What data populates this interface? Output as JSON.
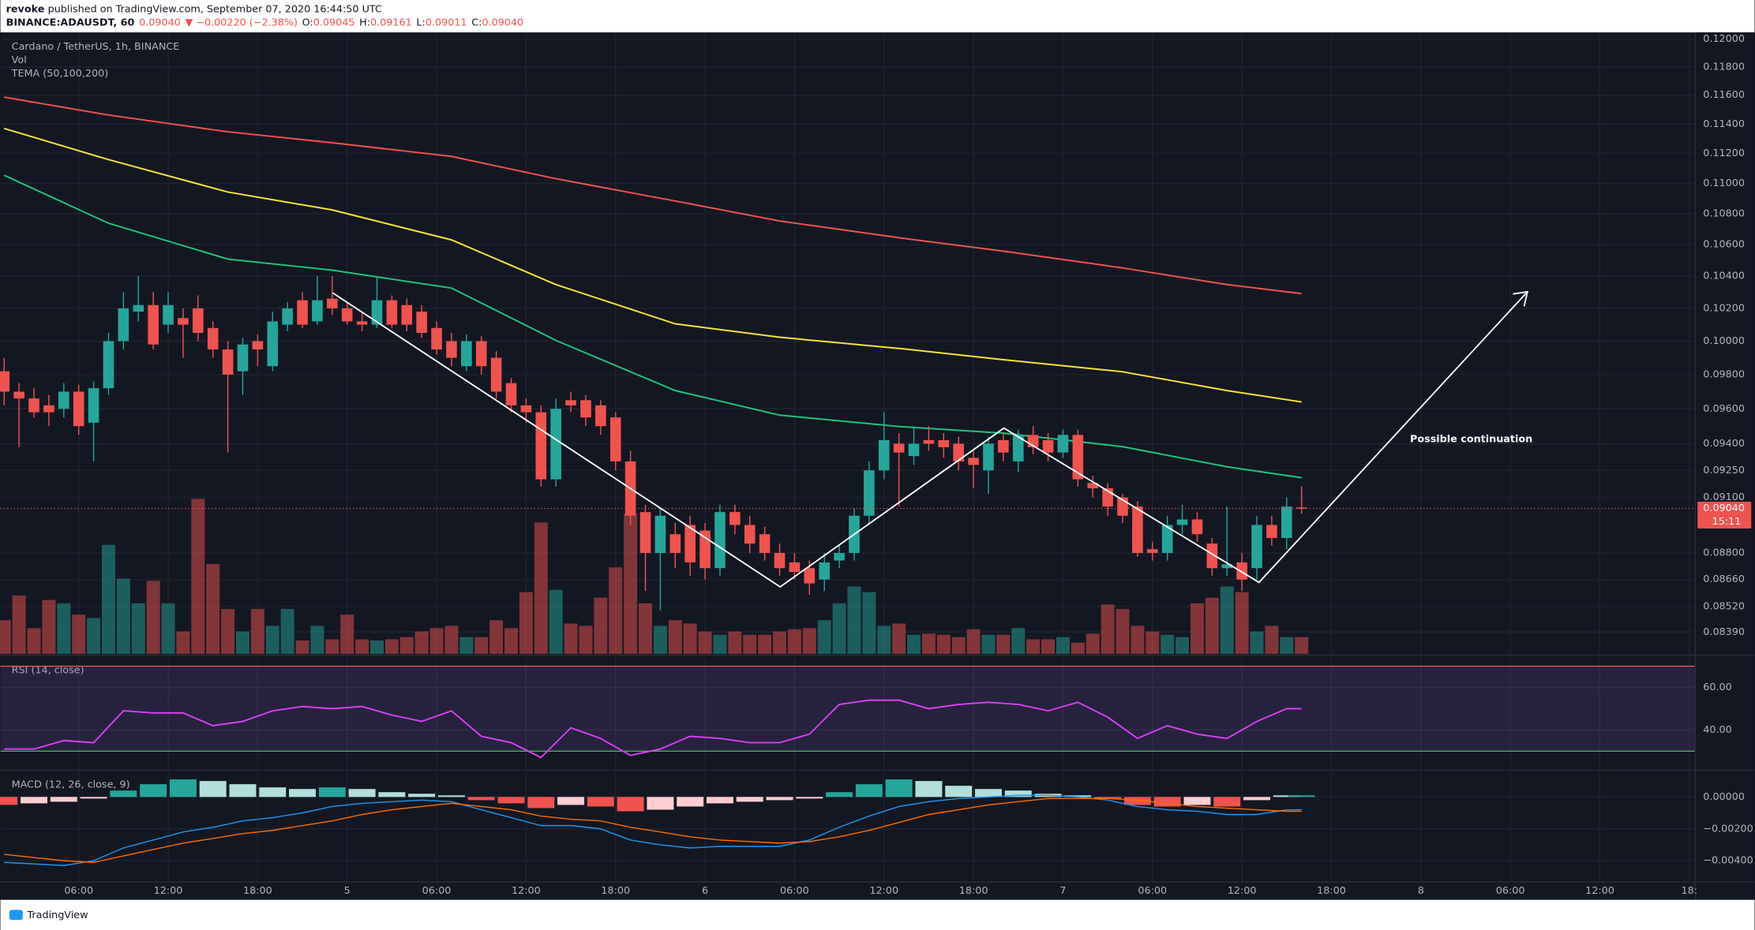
{
  "header": {
    "author": "revoke",
    "published": "published on TradingView.com, September 07, 2020 16:44:50 UTC",
    "quote": [
      "BINANCE:ADAUSDT, 60",
      "0.09040",
      "▼ −0.00220 (−2.38%)",
      "O:",
      "0.09045",
      "H:",
      "0.09161",
      "L:",
      "0.09011",
      "C:",
      "0.09040"
    ]
  },
  "footer": {
    "brand": "TradingView"
  },
  "chart_data": [
    {
      "type": "candlestick",
      "title": "Cardano / TetherUS, 1h, BINANCE",
      "labels": [
        "Vol",
        "TEMA (50,100,200)"
      ],
      "x": [
        1,
        2,
        3,
        4,
        5,
        6,
        7,
        8,
        9,
        10,
        11,
        12,
        13,
        14,
        15,
        16,
        17,
        18,
        19,
        20,
        21,
        22,
        23,
        24,
        25,
        26,
        27,
        28,
        29,
        30,
        31,
        32,
        33,
        34,
        35,
        36,
        37,
        38,
        39,
        40,
        41,
        42,
        43,
        44,
        45,
        46,
        47,
        48,
        49,
        50,
        51,
        52,
        53,
        54,
        55,
        56,
        57,
        58,
        59,
        60,
        61,
        62,
        63,
        64,
        65,
        66,
        67,
        68,
        69,
        70,
        71,
        72,
        73,
        74,
        75,
        76,
        77,
        78,
        79,
        80,
        81,
        82,
        83,
        84,
        85,
        86,
        87,
        88
      ],
      "open": [
        0.0982,
        0.097,
        0.0966,
        0.0962,
        0.096,
        0.097,
        0.0952,
        0.0972,
        0.1,
        0.1018,
        0.1022,
        0.101,
        0.1014,
        0.102,
        0.1008,
        0.0995,
        0.0982,
        0.1,
        0.0985,
        0.101,
        0.1025,
        0.1012,
        0.1026,
        0.102,
        0.1012,
        0.101,
        0.1025,
        0.1022,
        0.1018,
        0.1008,
        0.1,
        0.0985,
        0.1,
        0.099,
        0.0975,
        0.0962,
        0.0958,
        0.092,
        0.0965,
        0.0965,
        0.0962,
        0.0955,
        0.093,
        0.0902,
        0.088,
        0.089,
        0.0895,
        0.0892,
        0.0872,
        0.0902,
        0.0895,
        0.089,
        0.088,
        0.0875,
        0.0872,
        0.0866,
        0.0876,
        0.088,
        0.09,
        0.0925,
        0.094,
        0.0933,
        0.0942,
        0.0942,
        0.094,
        0.0932,
        0.0925,
        0.0942,
        0.093,
        0.0945,
        0.0942,
        0.0935,
        0.0945,
        0.0918,
        0.0915,
        0.091,
        0.0905,
        0.0882,
        0.088,
        0.0895,
        0.0898,
        0.0885,
        0.0872,
        0.0875,
        0.0872,
        0.0895,
        0.0888,
        0.09045
      ],
      "high": [
        0.099,
        0.0975,
        0.0972,
        0.0968,
        0.0975,
        0.0974,
        0.0976,
        0.1005,
        0.103,
        0.104,
        0.103,
        0.103,
        0.102,
        0.1028,
        0.1012,
        0.1,
        0.1002,
        0.1004,
        0.1018,
        0.1024,
        0.103,
        0.104,
        0.104,
        0.1024,
        0.1018,
        0.104,
        0.1028,
        0.1026,
        0.1022,
        0.1012,
        0.1005,
        0.1004,
        0.1003,
        0.0994,
        0.0978,
        0.0966,
        0.0962,
        0.0966,
        0.097,
        0.0968,
        0.0965,
        0.0958,
        0.0936,
        0.0906,
        0.0904,
        0.0896,
        0.09,
        0.0896,
        0.0906,
        0.0906,
        0.09,
        0.0894,
        0.0885,
        0.088,
        0.0876,
        0.088,
        0.0884,
        0.0904,
        0.093,
        0.0958,
        0.0946,
        0.095,
        0.095,
        0.0946,
        0.0944,
        0.0936,
        0.0944,
        0.0946,
        0.0948,
        0.095,
        0.0946,
        0.0948,
        0.0948,
        0.0922,
        0.0918,
        0.0912,
        0.0908,
        0.0886,
        0.09,
        0.0906,
        0.0902,
        0.0888,
        0.0905,
        0.088,
        0.09,
        0.09,
        0.091,
        0.09161
      ],
      "low": [
        0.0962,
        0.0938,
        0.0955,
        0.095,
        0.0955,
        0.0945,
        0.093,
        0.0968,
        0.0995,
        0.1012,
        0.0995,
        0.1005,
        0.099,
        0.1,
        0.099,
        0.0935,
        0.0968,
        0.0985,
        0.0982,
        0.1006,
        0.1008,
        0.101,
        0.1016,
        0.101,
        0.1006,
        0.1008,
        0.1008,
        0.1006,
        0.1002,
        0.0992,
        0.0985,
        0.0982,
        0.098,
        0.0966,
        0.0958,
        0.0952,
        0.0916,
        0.0916,
        0.0958,
        0.095,
        0.0945,
        0.0925,
        0.0895,
        0.086,
        0.085,
        0.0872,
        0.0868,
        0.0866,
        0.0868,
        0.089,
        0.088,
        0.0876,
        0.0868,
        0.0866,
        0.0858,
        0.086,
        0.0872,
        0.0876,
        0.0896,
        0.092,
        0.0905,
        0.0928,
        0.0936,
        0.0932,
        0.0925,
        0.0915,
        0.0912,
        0.093,
        0.0924,
        0.0934,
        0.093,
        0.0932,
        0.0916,
        0.091,
        0.09,
        0.0896,
        0.0878,
        0.0876,
        0.0876,
        0.089,
        0.0886,
        0.0868,
        0.0868,
        0.086,
        0.0866,
        0.0884,
        0.0882,
        0.09011
      ],
      "close": [
        0.097,
        0.0966,
        0.0958,
        0.0958,
        0.097,
        0.095,
        0.0972,
        0.1,
        0.102,
        0.1022,
        0.0998,
        0.1022,
        0.101,
        0.1005,
        0.0995,
        0.098,
        0.0998,
        0.0995,
        0.1012,
        0.102,
        0.101,
        0.1025,
        0.102,
        0.1012,
        0.101,
        0.1025,
        0.101,
        0.101,
        0.1005,
        0.0995,
        0.099,
        0.1,
        0.0985,
        0.097,
        0.0962,
        0.0958,
        0.092,
        0.096,
        0.0962,
        0.0955,
        0.095,
        0.093,
        0.09,
        0.088,
        0.09,
        0.088,
        0.0875,
        0.0872,
        0.0902,
        0.0895,
        0.0885,
        0.088,
        0.0872,
        0.087,
        0.0864,
        0.0875,
        0.088,
        0.09,
        0.0925,
        0.0942,
        0.0935,
        0.094,
        0.094,
        0.0938,
        0.093,
        0.0928,
        0.094,
        0.0935,
        0.0945,
        0.0938,
        0.0935,
        0.0945,
        0.092,
        0.0915,
        0.0905,
        0.09,
        0.088,
        0.088,
        0.0895,
        0.0898,
        0.089,
        0.0872,
        0.0874,
        0.0866,
        0.0895,
        0.0888,
        0.0905,
        0.0904
      ],
      "up_color": "#26a69a",
      "down_color": "#ef5350",
      "volume": [
        30,
        52,
        23,
        48,
        45,
        35,
        32,
        97,
        67,
        45,
        65,
        45,
        20,
        138,
        80,
        40,
        20,
        40,
        25,
        40,
        12,
        25,
        13,
        35,
        13,
        12,
        13,
        15,
        20,
        23,
        25,
        15,
        15,
        30,
        23,
        55,
        117,
        57,
        27,
        25,
        50,
        77,
        125,
        45,
        25,
        30,
        27,
        20,
        17,
        20,
        17,
        17,
        20,
        22,
        23,
        30,
        45,
        60,
        55,
        25,
        27,
        17,
        18,
        17,
        15,
        22,
        17,
        17,
        23,
        13,
        13,
        15,
        10,
        18,
        44,
        40,
        25,
        20,
        17,
        15,
        45,
        50,
        60,
        55,
        20,
        25,
        15,
        15
      ],
      "tema": {
        "x": [
          1,
          8,
          16,
          23,
          31,
          38,
          46,
          53,
          61,
          68,
          76,
          83,
          88
        ],
        "series": [
          {
            "color": "#f05350",
            "values": [
              0.11587,
              0.11462,
              0.11347,
              0.11272,
              0.1118,
              0.1103,
              0.10883,
              0.10752,
              0.10644,
              0.10558,
              0.10452,
              0.10347,
              0.10291
            ]
          },
          {
            "color": "#f7e23c",
            "values": [
              0.1137,
              0.11158,
              0.10942,
              0.10824,
              0.1063,
              0.10347,
              0.10105,
              0.10024,
              0.09956,
              0.09889,
              0.09817,
              0.09706,
              0.0964
            ]
          },
          {
            "color": "#1fc47a",
            "values": [
              0.11053,
              0.10738,
              0.10508,
              0.10438,
              0.10326,
              0.10004,
              0.09706,
              0.09563,
              0.09498,
              0.0946,
              0.09383,
              0.0927,
              0.09209
            ]
          }
        ]
      },
      "ylim": [
        0.0828,
        0.1204
      ],
      "log_scale": true,
      "grid": true,
      "yticks": [
        {
          "value": 0.12,
          "label": "0.12000"
        },
        {
          "value": 0.118,
          "label": "0.11800"
        },
        {
          "value": 0.116,
          "label": "0.11600"
        },
        {
          "value": 0.114,
          "label": "0.11400"
        },
        {
          "value": 0.112,
          "label": "0.11200"
        },
        {
          "value": 0.11,
          "label": "0.11000"
        },
        {
          "value": 0.108,
          "label": "0.10800"
        },
        {
          "value": 0.106,
          "label": "0.10600"
        },
        {
          "value": 0.104,
          "label": "0.10400"
        },
        {
          "value": 0.102,
          "label": "0.10200"
        },
        {
          "value": 0.1,
          "label": "0.10000"
        },
        {
          "value": 0.098,
          "label": "0.09800"
        },
        {
          "value": 0.096,
          "label": "0.09600"
        },
        {
          "value": 0.094,
          "label": "0.09400"
        },
        {
          "value": 0.0925,
          "label": "0.09250"
        },
        {
          "value": 0.091,
          "label": "0.09100"
        },
        {
          "value": 0.088,
          "label": "0.08800"
        },
        {
          "value": 0.0866,
          "label": "0.08660"
        },
        {
          "value": 0.0852,
          "label": "0.08520"
        },
        {
          "value": 0.0839,
          "label": "0.08390"
        }
      ],
      "xlim": [
        0.75,
        114.4
      ],
      "xticks": [
        {
          "value": 6,
          "label": "06:00"
        },
        {
          "value": 12,
          "label": "12:00"
        },
        {
          "value": 18,
          "label": "18:00"
        },
        {
          "value": 24,
          "label": "5"
        },
        {
          "value": 30,
          "label": "06:00"
        },
        {
          "value": 36,
          "label": "12:00"
        },
        {
          "value": 42,
          "label": "18:00"
        },
        {
          "value": 48,
          "label": "6"
        },
        {
          "value": 54,
          "label": "06:00"
        },
        {
          "value": 60,
          "label": "12:00"
        },
        {
          "value": 66,
          "label": "18:00"
        },
        {
          "value": 72,
          "label": "7"
        },
        {
          "value": 78,
          "label": "06:00"
        },
        {
          "value": 84,
          "label": "12:00"
        },
        {
          "value": 90,
          "label": "18:00"
        },
        {
          "value": 96,
          "label": "8"
        },
        {
          "value": 102,
          "label": "06:00"
        },
        {
          "value": 108,
          "label": "12:00"
        },
        {
          "value": 114,
          "label": "18:"
        }
      ],
      "last_price": {
        "value": 0.0904,
        "label": "0.09040",
        "countdown": "15:11"
      },
      "annotation": "Possible continuation"
    },
    {
      "type": "line",
      "title": "RSI (14, close)",
      "x": [
        1,
        3,
        5,
        7,
        9,
        11,
        13,
        15,
        17,
        19,
        21,
        23,
        25,
        27,
        29,
        31,
        33,
        35,
        37,
        39,
        41,
        43,
        45,
        47,
        49,
        51,
        53,
        55,
        57,
        59,
        61,
        63,
        65,
        67,
        69,
        71,
        73,
        75,
        77,
        79,
        81,
        83,
        85,
        87,
        88
      ],
      "values": [
        31,
        31,
        35,
        34,
        49,
        48,
        48,
        42,
        44,
        49,
        51,
        50,
        51,
        47,
        44,
        49,
        37,
        34,
        27,
        41,
        36,
        28,
        31,
        37,
        36,
        34,
        34,
        38,
        52,
        54,
        54,
        50,
        52,
        53,
        52,
        49,
        53,
        46,
        36,
        42,
        38,
        36,
        44,
        50,
        50
      ],
      "color": "#e040fb",
      "ylim": [
        21.6,
        74.2
      ],
      "bands": [
        30,
        70
      ],
      "yticks": [
        {
          "value": 60,
          "label": "60.00"
        },
        {
          "value": 40,
          "label": "40.00"
        }
      ]
    },
    {
      "type": "macd",
      "title": "MACD (12, 26, close, 9)",
      "x": [
        1,
        3,
        5,
        7,
        9,
        11,
        13,
        15,
        17,
        19,
        21,
        23,
        25,
        27,
        29,
        31,
        33,
        35,
        37,
        39,
        41,
        43,
        45,
        47,
        49,
        51,
        53,
        55,
        57,
        59,
        61,
        63,
        65,
        67,
        69,
        71,
        73,
        75,
        77,
        79,
        81,
        83,
        85,
        87,
        88
      ],
      "histogram": [
        -0.0005,
        -0.0004,
        -0.0003,
        -0.0001,
        0.0004,
        0.0008,
        0.0011,
        0.001,
        0.0008,
        0.0006,
        0.0005,
        0.0006,
        0.0005,
        0.0003,
        0.0002,
        0.0001,
        -0.0002,
        -0.0004,
        -0.0007,
        -0.0005,
        -0.0006,
        -0.0009,
        -0.0008,
        -0.0006,
        -0.0004,
        -0.0003,
        -0.0002,
        -0.0001,
        0.0003,
        0.0008,
        0.0011,
        0.001,
        0.0007,
        0.0005,
        0.0004,
        0.0002,
        0.0001,
        -0.0001,
        -0.0005,
        -0.0006,
        -0.0005,
        -0.0006,
        -0.0002,
        0.0001,
        0.0001
      ],
      "series": [
        {
          "color": "#2196f3",
          "values": [
            -0.0041,
            -0.0042,
            -0.0043,
            -0.004,
            -0.0032,
            -0.0027,
            -0.0022,
            -0.0019,
            -0.0015,
            -0.0013,
            -0.001,
            -0.0006,
            -0.0004,
            -0.0003,
            -0.0002,
            -0.0003,
            -0.0008,
            -0.0013,
            -0.0018,
            -0.0018,
            -0.002,
            -0.0027,
            -0.003,
            -0.0032,
            -0.0031,
            -0.0031,
            -0.0031,
            -0.0027,
            -0.0019,
            -0.0012,
            -0.0006,
            -0.0003,
            -0.0001,
            0,
            0.0001,
            0.0001,
            0,
            -0.0002,
            -0.0006,
            -0.0008,
            -0.0009,
            -0.0011,
            -0.0011,
            -0.0008,
            -0.0008
          ]
        },
        {
          "color": "#ff6d00",
          "values": [
            -0.0036,
            -0.0038,
            -0.004,
            -0.0041,
            -0.0037,
            -0.0033,
            -0.0029,
            -0.0026,
            -0.0023,
            -0.0021,
            -0.0018,
            -0.0015,
            -0.0011,
            -0.0008,
            -0.0006,
            -0.0004,
            -0.0006,
            -0.0008,
            -0.0012,
            -0.0014,
            -0.0015,
            -0.0019,
            -0.0022,
            -0.0025,
            -0.0027,
            -0.0028,
            -0.0029,
            -0.0028,
            -0.0025,
            -0.0021,
            -0.0016,
            -0.0011,
            -0.0008,
            -0.0005,
            -0.0003,
            -0.0001,
            -0.0001,
            -0.0001,
            -0.0002,
            -0.0004,
            -0.0006,
            -0.0007,
            -0.0008,
            -0.0009,
            -0.0009
          ]
        }
      ],
      "ylim": [
        -0.00526,
        0.00161
      ],
      "yticks": [
        {
          "value": 0,
          "label": "0.00000"
        },
        {
          "value": -0.002,
          "label": "−0.00200"
        },
        {
          "value": -0.004,
          "label": "−0.00400"
        }
      ]
    }
  ]
}
